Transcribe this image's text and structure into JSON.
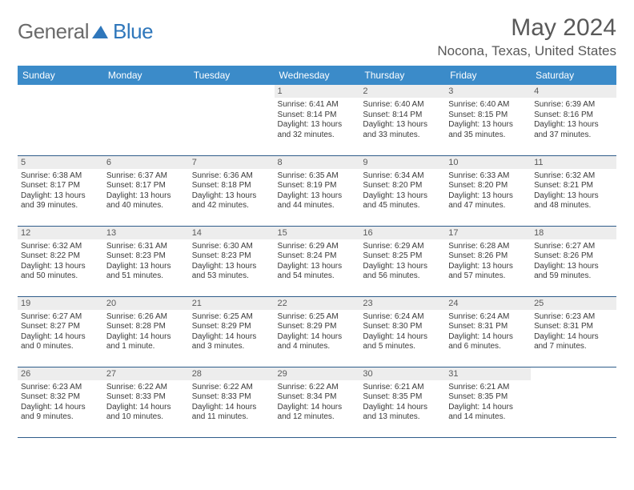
{
  "brand": {
    "name_part1": "General",
    "name_part2": "Blue"
  },
  "title": "May 2024",
  "location": "Nocona, Texas, United States",
  "colors": {
    "header_bg": "#3b8bc9",
    "header_text": "#ffffff",
    "daynum_bg": "#ededed",
    "cell_border": "#2f5d8a",
    "title_color": "#595959",
    "logo_gray": "#6b6b6b",
    "logo_blue": "#2f77bb"
  },
  "weekdays": [
    "Sunday",
    "Monday",
    "Tuesday",
    "Wednesday",
    "Thursday",
    "Friday",
    "Saturday"
  ],
  "weeks": [
    [
      null,
      null,
      null,
      {
        "n": "1",
        "sr": "Sunrise: 6:41 AM",
        "ss": "Sunset: 8:14 PM",
        "d1": "Daylight: 13 hours",
        "d2": "and 32 minutes."
      },
      {
        "n": "2",
        "sr": "Sunrise: 6:40 AM",
        "ss": "Sunset: 8:14 PM",
        "d1": "Daylight: 13 hours",
        "d2": "and 33 minutes."
      },
      {
        "n": "3",
        "sr": "Sunrise: 6:40 AM",
        "ss": "Sunset: 8:15 PM",
        "d1": "Daylight: 13 hours",
        "d2": "and 35 minutes."
      },
      {
        "n": "4",
        "sr": "Sunrise: 6:39 AM",
        "ss": "Sunset: 8:16 PM",
        "d1": "Daylight: 13 hours",
        "d2": "and 37 minutes."
      }
    ],
    [
      {
        "n": "5",
        "sr": "Sunrise: 6:38 AM",
        "ss": "Sunset: 8:17 PM",
        "d1": "Daylight: 13 hours",
        "d2": "and 39 minutes."
      },
      {
        "n": "6",
        "sr": "Sunrise: 6:37 AM",
        "ss": "Sunset: 8:17 PM",
        "d1": "Daylight: 13 hours",
        "d2": "and 40 minutes."
      },
      {
        "n": "7",
        "sr": "Sunrise: 6:36 AM",
        "ss": "Sunset: 8:18 PM",
        "d1": "Daylight: 13 hours",
        "d2": "and 42 minutes."
      },
      {
        "n": "8",
        "sr": "Sunrise: 6:35 AM",
        "ss": "Sunset: 8:19 PM",
        "d1": "Daylight: 13 hours",
        "d2": "and 44 minutes."
      },
      {
        "n": "9",
        "sr": "Sunrise: 6:34 AM",
        "ss": "Sunset: 8:20 PM",
        "d1": "Daylight: 13 hours",
        "d2": "and 45 minutes."
      },
      {
        "n": "10",
        "sr": "Sunrise: 6:33 AM",
        "ss": "Sunset: 8:20 PM",
        "d1": "Daylight: 13 hours",
        "d2": "and 47 minutes."
      },
      {
        "n": "11",
        "sr": "Sunrise: 6:32 AM",
        "ss": "Sunset: 8:21 PM",
        "d1": "Daylight: 13 hours",
        "d2": "and 48 minutes."
      }
    ],
    [
      {
        "n": "12",
        "sr": "Sunrise: 6:32 AM",
        "ss": "Sunset: 8:22 PM",
        "d1": "Daylight: 13 hours",
        "d2": "and 50 minutes."
      },
      {
        "n": "13",
        "sr": "Sunrise: 6:31 AM",
        "ss": "Sunset: 8:23 PM",
        "d1": "Daylight: 13 hours",
        "d2": "and 51 minutes."
      },
      {
        "n": "14",
        "sr": "Sunrise: 6:30 AM",
        "ss": "Sunset: 8:23 PM",
        "d1": "Daylight: 13 hours",
        "d2": "and 53 minutes."
      },
      {
        "n": "15",
        "sr": "Sunrise: 6:29 AM",
        "ss": "Sunset: 8:24 PM",
        "d1": "Daylight: 13 hours",
        "d2": "and 54 minutes."
      },
      {
        "n": "16",
        "sr": "Sunrise: 6:29 AM",
        "ss": "Sunset: 8:25 PM",
        "d1": "Daylight: 13 hours",
        "d2": "and 56 minutes."
      },
      {
        "n": "17",
        "sr": "Sunrise: 6:28 AM",
        "ss": "Sunset: 8:26 PM",
        "d1": "Daylight: 13 hours",
        "d2": "and 57 minutes."
      },
      {
        "n": "18",
        "sr": "Sunrise: 6:27 AM",
        "ss": "Sunset: 8:26 PM",
        "d1": "Daylight: 13 hours",
        "d2": "and 59 minutes."
      }
    ],
    [
      {
        "n": "19",
        "sr": "Sunrise: 6:27 AM",
        "ss": "Sunset: 8:27 PM",
        "d1": "Daylight: 14 hours",
        "d2": "and 0 minutes."
      },
      {
        "n": "20",
        "sr": "Sunrise: 6:26 AM",
        "ss": "Sunset: 8:28 PM",
        "d1": "Daylight: 14 hours",
        "d2": "and 1 minute."
      },
      {
        "n": "21",
        "sr": "Sunrise: 6:25 AM",
        "ss": "Sunset: 8:29 PM",
        "d1": "Daylight: 14 hours",
        "d2": "and 3 minutes."
      },
      {
        "n": "22",
        "sr": "Sunrise: 6:25 AM",
        "ss": "Sunset: 8:29 PM",
        "d1": "Daylight: 14 hours",
        "d2": "and 4 minutes."
      },
      {
        "n": "23",
        "sr": "Sunrise: 6:24 AM",
        "ss": "Sunset: 8:30 PM",
        "d1": "Daylight: 14 hours",
        "d2": "and 5 minutes."
      },
      {
        "n": "24",
        "sr": "Sunrise: 6:24 AM",
        "ss": "Sunset: 8:31 PM",
        "d1": "Daylight: 14 hours",
        "d2": "and 6 minutes."
      },
      {
        "n": "25",
        "sr": "Sunrise: 6:23 AM",
        "ss": "Sunset: 8:31 PM",
        "d1": "Daylight: 14 hours",
        "d2": "and 7 minutes."
      }
    ],
    [
      {
        "n": "26",
        "sr": "Sunrise: 6:23 AM",
        "ss": "Sunset: 8:32 PM",
        "d1": "Daylight: 14 hours",
        "d2": "and 9 minutes."
      },
      {
        "n": "27",
        "sr": "Sunrise: 6:22 AM",
        "ss": "Sunset: 8:33 PM",
        "d1": "Daylight: 14 hours",
        "d2": "and 10 minutes."
      },
      {
        "n": "28",
        "sr": "Sunrise: 6:22 AM",
        "ss": "Sunset: 8:33 PM",
        "d1": "Daylight: 14 hours",
        "d2": "and 11 minutes."
      },
      {
        "n": "29",
        "sr": "Sunrise: 6:22 AM",
        "ss": "Sunset: 8:34 PM",
        "d1": "Daylight: 14 hours",
        "d2": "and 12 minutes."
      },
      {
        "n": "30",
        "sr": "Sunrise: 6:21 AM",
        "ss": "Sunset: 8:35 PM",
        "d1": "Daylight: 14 hours",
        "d2": "and 13 minutes."
      },
      {
        "n": "31",
        "sr": "Sunrise: 6:21 AM",
        "ss": "Sunset: 8:35 PM",
        "d1": "Daylight: 14 hours",
        "d2": "and 14 minutes."
      },
      null
    ]
  ]
}
